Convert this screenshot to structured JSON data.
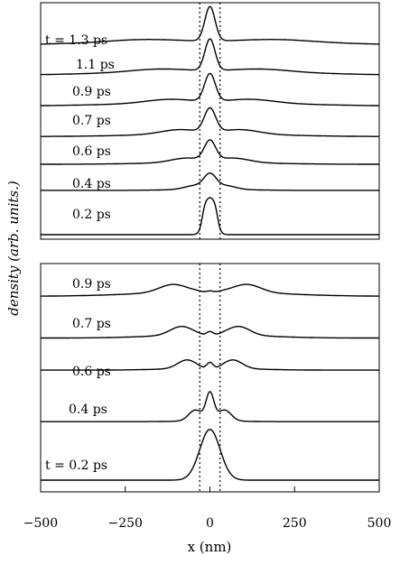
{
  "chart_data": [
    {
      "type": "line",
      "panel": "top",
      "description_units": "density (arb. units.) vs x (nm); curves offset vertically",
      "x_range": [
        -500,
        500
      ],
      "dashed_x": [
        -30,
        30
      ],
      "curves": [
        {
          "label": "0.2 ps",
          "edge": 0,
          "peak_height": 1.15,
          "center_width": 22,
          "plateau": 1,
          "wing_amp": 0,
          "wing_pos": 0,
          "wing_width": 0,
          "dip": 0
        },
        {
          "label": "0.4 ps",
          "edge": 0.08,
          "peak_height": 0.55,
          "center_width": 18,
          "plateau": 0,
          "wing_amp": 0.22,
          "wing_pos": 45,
          "wing_width": 60,
          "dip": 0.5
        },
        {
          "label": "0.6 ps",
          "edge": 0.15,
          "peak_height": 0.62,
          "center_width": 17,
          "plateau": 0,
          "wing_amp": 0.25,
          "wing_pos": 70,
          "wing_width": 90,
          "dip": 0.15
        },
        {
          "label": "0.7 ps",
          "edge": 0.2,
          "peak_height": 0.72,
          "center_width": 17,
          "plateau": 0,
          "wing_amp": 0.26,
          "wing_pos": 90,
          "wing_width": 110,
          "dip": 0.1
        },
        {
          "label": "0.9 ps",
          "edge": 0.25,
          "peak_height": 0.82,
          "center_width": 16,
          "plateau": 0,
          "wing_amp": 0.22,
          "wing_pos": 120,
          "wing_width": 140,
          "dip": 0.05
        },
        {
          "label": "1.1 ps",
          "edge": 0.3,
          "peak_height": 0.92,
          "center_width": 15,
          "plateau": 0,
          "wing_amp": 0.18,
          "wing_pos": 150,
          "wing_width": 170,
          "dip": 0.0
        },
        {
          "label": "t = 1.3 ps",
          "edge": 0.35,
          "peak_height": 1.0,
          "center_width": 15,
          "plateau": 0,
          "wing_amp": 0.15,
          "wing_pos": 200,
          "wing_width": 200,
          "dip": 0.0
        }
      ]
    },
    {
      "type": "line",
      "panel": "bottom",
      "x_range": [
        -500,
        500
      ],
      "dashed_x": [
        -30,
        30
      ],
      "xlabel": "x (nm)",
      "xticks": [
        -500,
        -250,
        0,
        250,
        500
      ],
      "curves": [
        {
          "label": "t = 0.2 ps",
          "edge": 0,
          "peak_height": 1.25,
          "center_width": 30,
          "plateau": 0,
          "wing_amp": 0,
          "wing_pos": 0,
          "wing_width": 0,
          "dip": 0
        },
        {
          "label": "0.4 ps",
          "edge": 0.05,
          "peak_height": 0.75,
          "center_width": 12,
          "plateau": 0,
          "wing_amp": 0.55,
          "wing_pos": 42,
          "wing_width": 40,
          "dip": 0.3
        },
        {
          "label": "0.6 ps",
          "edge": 0.12,
          "peak_height": 0.2,
          "center_width": 10,
          "plateau": 0,
          "wing_amp": 0.42,
          "wing_pos": 68,
          "wing_width": 55,
          "dip": 0.25
        },
        {
          "label": "0.7 ps",
          "edge": 0.22,
          "peak_height": 0.12,
          "center_width": 10,
          "plateau": 0,
          "wing_amp": 0.42,
          "wing_pos": 85,
          "wing_width": 65,
          "dip": 0.2
        },
        {
          "label": "0.9 ps",
          "edge": 0.3,
          "peak_height": 0.05,
          "center_width": 10,
          "plateau": 0,
          "wing_amp": 0.38,
          "wing_pos": 110,
          "wing_width": 80,
          "dip": 0.15
        }
      ]
    }
  ],
  "ylabel": "density (arb. units.)"
}
